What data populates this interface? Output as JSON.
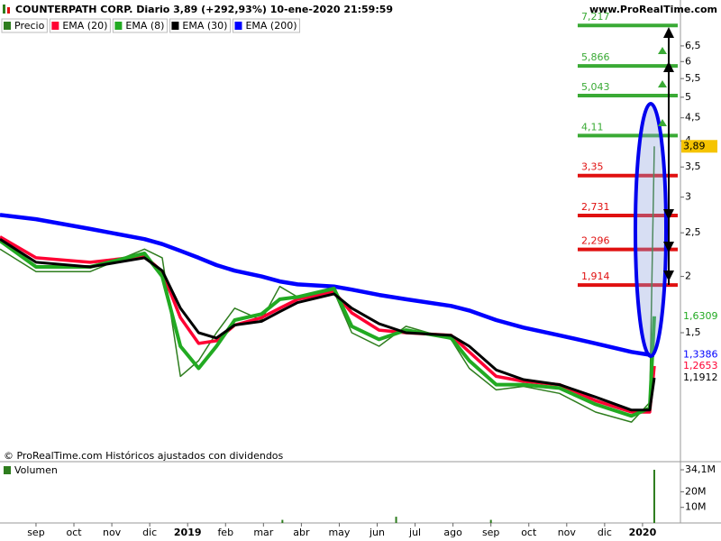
{
  "chart_data": [
    {
      "type": "line",
      "title": "COUNTERPATH CORP. Diario 3,89 (+292,93%) 10-ene-2020 21:59:59",
      "source": "www.ProRealTime.com",
      "note": "© ProRealTime.com Históricos ajustados con dividendos",
      "log_scale": true,
      "x": [
        -0.95,
        0,
        1.43,
        2.86,
        3.33,
        3.81,
        4.29,
        4.76,
        5.24,
        5.95,
        6.43,
        6.9,
        7.86,
        8.33,
        9.05,
        9.76,
        10.95,
        11.43,
        12.14,
        12.86,
        13.81,
        14.76,
        15.71,
        16.19,
        16.31
      ],
      "series": [
        {
          "name": "Precio",
          "color": "#2e7d1e",
          "values": [
            2.3,
            2.05,
            2.05,
            2.3,
            2.2,
            1.2,
            1.3,
            1.5,
            1.7,
            1.6,
            1.9,
            1.8,
            1.85,
            1.5,
            1.4,
            1.55,
            1.45,
            1.25,
            1.12,
            1.14,
            1.1,
            1.0,
            0.95,
            1.05,
            3.89
          ]
        },
        {
          "name": "EMA (20)",
          "color": "#ff0033",
          "values": [
            2.45,
            2.2,
            2.15,
            2.22,
            2.05,
            1.62,
            1.42,
            1.44,
            1.56,
            1.62,
            1.7,
            1.78,
            1.85,
            1.66,
            1.52,
            1.5,
            1.48,
            1.36,
            1.2,
            1.17,
            1.15,
            1.06,
            1.0,
            1.0,
            1.2653
          ]
        },
        {
          "name": "EMA (8)",
          "color": "#22aa22",
          "values": [
            2.4,
            2.1,
            2.1,
            2.25,
            2.0,
            1.4,
            1.25,
            1.4,
            1.6,
            1.65,
            1.78,
            1.8,
            1.88,
            1.55,
            1.45,
            1.52,
            1.46,
            1.3,
            1.15,
            1.15,
            1.13,
            1.04,
            0.98,
            1.02,
            1.6309
          ]
        },
        {
          "name": "EMA (30)",
          "color": "#000000",
          "values": [
            2.42,
            2.15,
            2.1,
            2.2,
            2.06,
            1.7,
            1.5,
            1.46,
            1.56,
            1.59,
            1.67,
            1.75,
            1.83,
            1.7,
            1.57,
            1.5,
            1.48,
            1.4,
            1.24,
            1.18,
            1.15,
            1.08,
            1.01,
            1.01,
            1.1912
          ]
        },
        {
          "name": "EMA (200)",
          "color": "#0000ff",
          "values": [
            2.74,
            2.68,
            2.55,
            2.42,
            2.36,
            2.28,
            2.2,
            2.12,
            2.06,
            2.0,
            1.95,
            1.92,
            1.9,
            1.87,
            1.82,
            1.78,
            1.72,
            1.68,
            1.6,
            1.54,
            1.48,
            1.42,
            1.36,
            1.34,
            1.3386
          ]
        }
      ],
      "xlim": [
        -0.95,
        17.0
      ],
      "xticks": [
        {
          "value": 0,
          "label": "sep"
        },
        {
          "value": 1,
          "label": "oct"
        },
        {
          "value": 2,
          "label": "nov"
        },
        {
          "value": 3,
          "label": "dic"
        },
        {
          "value": 4,
          "label": "2019"
        },
        {
          "value": 5,
          "label": "feb"
        },
        {
          "value": 6,
          "label": "mar"
        },
        {
          "value": 7,
          "label": "abr"
        },
        {
          "value": 8,
          "label": "may"
        },
        {
          "value": 9,
          "label": "jun"
        },
        {
          "value": 10,
          "label": "jul"
        },
        {
          "value": 11,
          "label": "ago"
        },
        {
          "value": 12,
          "label": "sep"
        },
        {
          "value": 13,
          "label": "oct"
        },
        {
          "value": 14,
          "label": "nov"
        },
        {
          "value": 15,
          "label": "dic"
        },
        {
          "value": 16,
          "label": "2020"
        }
      ],
      "ylim": [
        0.82,
        7.6
      ],
      "yticks": [
        {
          "value": 1.5,
          "label": "1,5"
        },
        2,
        {
          "value": 2.5,
          "label": "2,5"
        },
        3,
        {
          "value": 3.5,
          "label": "3,5"
        },
        4,
        {
          "value": 4.5,
          "label": "4,5"
        },
        5,
        {
          "value": 5.5,
          "label": "5,5"
        },
        6,
        {
          "value": 6.5,
          "label": "6,5"
        }
      ],
      "levels": [
        {
          "value": 7.217,
          "label": "7,217",
          "color": "#3aaa35"
        },
        {
          "value": 5.866,
          "label": "5,866",
          "color": "#3aaa35"
        },
        {
          "value": 5.043,
          "label": "5,043",
          "color": "#3aaa35"
        },
        {
          "value": 4.11,
          "label": "4,11",
          "color": "#3aaa35"
        },
        {
          "value": 3.35,
          "label": "3,35",
          "color": "#e01010"
        },
        {
          "value": 2.731,
          "label": "2,731",
          "color": "#e01010"
        },
        {
          "value": 2.296,
          "label": "2,296",
          "color": "#e01010"
        },
        {
          "value": 1.914,
          "label": "1,914",
          "color": "#e01010"
        }
      ],
      "last_values": [
        {
          "value": 3.89,
          "label": "3,89",
          "color": "#f5c400"
        },
        {
          "value": 1.6309,
          "label": "1,6309",
          "color": "#22aa22"
        },
        {
          "value": 1.3386,
          "label": "1,3386",
          "color": "#0000ff"
        },
        {
          "value": 1.2653,
          "label": "1,2653",
          "color": "#ff0033"
        },
        {
          "value": 1.1912,
          "label": "1,1912",
          "color": "#000000"
        }
      ]
    },
    {
      "type": "bar",
      "title": "Volumen",
      "color": "#2e7d1e",
      "x": [
        6.5,
        9.5,
        12.0,
        16.31
      ],
      "values": [
        2,
        4,
        2,
        34.1
      ],
      "ylim": [
        0,
        37
      ],
      "yticks": [
        {
          "value": 10,
          "label": "10M"
        },
        {
          "value": 20,
          "label": "20M"
        },
        {
          "value": 34.1,
          "label": "34,1M"
        }
      ]
    }
  ]
}
